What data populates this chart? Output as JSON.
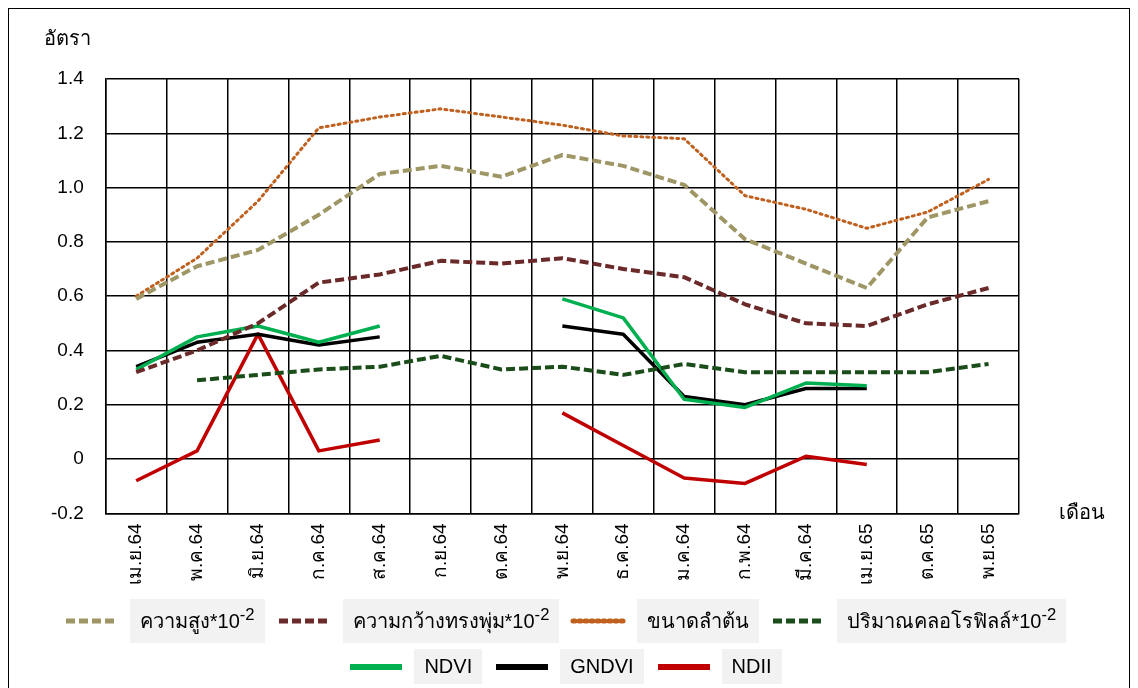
{
  "chart_data": {
    "type": "line",
    "xlabel": "เดือน",
    "ylabel": "อัตรา",
    "categories": [
      "เม.ย.64",
      "พ.ค.64",
      "มิ.ย.64",
      "ก.ค.64",
      "ส.ค.64",
      "ก.ย.64",
      "ต.ค.64",
      "พ.ย.64",
      "ธ.ค.64",
      "ม.ค.64",
      "ก.พ.64",
      "มี.ค.64",
      "เม.ย.65",
      "ต.ค.65",
      "พ.ย.65"
    ],
    "ylim": [
      -0.2,
      1.4
    ],
    "yticks": [
      -0.2,
      0,
      0.2,
      0.4,
      0.6,
      0.8,
      {
        "value": 1,
        "label": "1.0"
      },
      1.2,
      1.4
    ],
    "grid": true,
    "legend": "bottom",
    "marker": "none",
    "series": [
      {
        "name": "ความสูง*10$^{-2}$",
        "color": "#9e9664",
        "line_style": "dashed",
        "values": [
          0.59,
          0.71,
          0.77,
          0.9,
          1.05,
          1.08,
          1.04,
          1.12,
          1.08,
          1.01,
          0.81,
          0.72,
          0.63,
          0.89,
          0.95
        ]
      },
      {
        "name": "ความกว้างทรงพุ่ม*10$^{-2}$",
        "color": "#6b2a2a",
        "line_style": "dashed",
        "values": [
          0.32,
          0.4,
          0.5,
          0.65,
          0.68,
          0.73,
          0.72,
          0.74,
          0.7,
          0.67,
          0.57,
          0.5,
          0.49,
          0.57,
          0.63
        ]
      },
      {
        "name": "ขนาดลำต้น",
        "color": "#c0601e",
        "line_style": "dotted",
        "values": [
          0.6,
          0.74,
          0.95,
          1.22,
          1.26,
          1.29,
          1.26,
          1.23,
          1.19,
          1.18,
          0.97,
          0.92,
          0.85,
          0.91,
          1.03
        ]
      },
      {
        "name": "ปริมาณคลอโรฟิลล์*10$^{-2}$",
        "color": "#1a4d1a",
        "line_style": "dashed",
        "values": [
          null,
          0.29,
          0.31,
          0.33,
          0.34,
          0.38,
          0.33,
          0.34,
          0.31,
          0.35,
          0.32,
          0.32,
          0.32,
          0.32,
          0.35
        ]
      },
      {
        "name": "NDVI",
        "color": "#00b050",
        "line_style": "solid",
        "values": [
          0.33,
          0.45,
          0.49,
          0.43,
          0.49,
          null,
          null,
          0.59,
          0.52,
          0.22,
          0.19,
          0.28,
          0.27,
          null,
          null
        ]
      },
      {
        "name": "GNDVI",
        "color": "#000000",
        "line_style": "solid",
        "values": [
          0.34,
          0.43,
          0.46,
          0.42,
          0.45,
          null,
          null,
          0.49,
          0.46,
          0.23,
          0.2,
          0.26,
          0.26,
          null,
          null
        ]
      },
      {
        "name": "NDII",
        "color": "#c00000",
        "line_style": "solid",
        "values": [
          -0.08,
          0.03,
          0.46,
          0.03,
          0.07,
          null,
          null,
          0.17,
          0.05,
          -0.07,
          -0.09,
          0.01,
          -0.02,
          null,
          null
        ]
      }
    ]
  }
}
